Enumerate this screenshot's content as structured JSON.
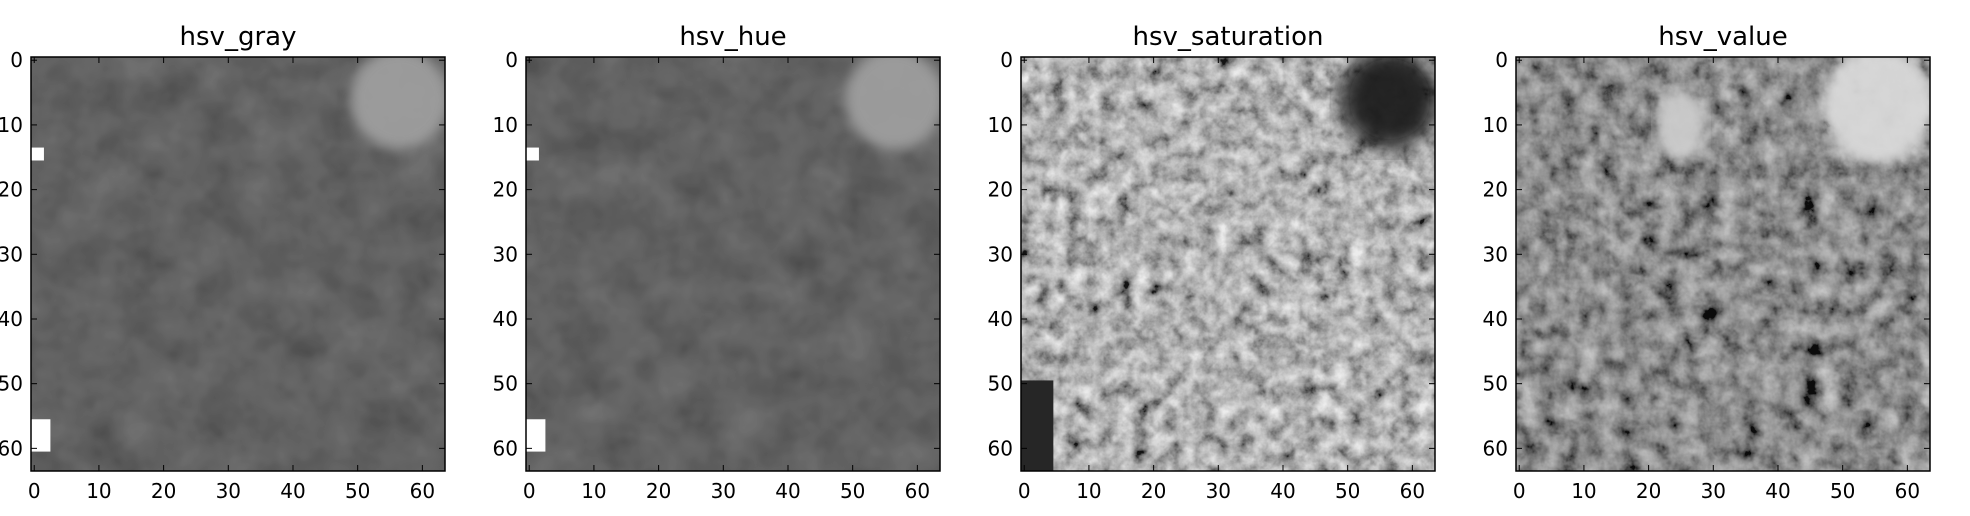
{
  "chart_data": [
    {
      "type": "heatmap",
      "title": "hsv_gray",
      "colormap": "gray",
      "xlim": [
        -0.5,
        63.5
      ],
      "ylim": [
        63.5,
        -0.5
      ],
      "xticks": [
        0,
        10,
        20,
        30,
        40,
        50,
        60
      ],
      "yticks": [
        0,
        10,
        20,
        30,
        40,
        50,
        60
      ],
      "base_level": 0.18,
      "features": [
        {
          "desc": "bright patch top-right",
          "x": [
            50,
            63
          ],
          "y": [
            0,
            12
          ],
          "level": 0.62
        },
        {
          "desc": "white speck left",
          "x": [
            0,
            1
          ],
          "y": [
            14,
            15
          ],
          "level": 1.0
        },
        {
          "desc": "white bracket bottom-left",
          "x": [
            0,
            2
          ],
          "y": [
            56,
            60
          ],
          "level": 1.0
        }
      ]
    },
    {
      "type": "heatmap",
      "title": "hsv_hue",
      "colormap": "gray",
      "xlim": [
        -0.5,
        63.5
      ],
      "ylim": [
        63.5,
        -0.5
      ],
      "xticks": [
        0,
        10,
        20,
        30,
        40,
        50,
        60
      ],
      "yticks": [
        0,
        10,
        20,
        30,
        40,
        50,
        60
      ],
      "base_level": 0.18,
      "features": [
        {
          "desc": "bright patch top-right",
          "x": [
            50,
            63
          ],
          "y": [
            0,
            12
          ],
          "level": 0.62
        },
        {
          "desc": "white speck left",
          "x": [
            0,
            1
          ],
          "y": [
            14,
            15
          ],
          "level": 1.0
        },
        {
          "desc": "white bracket bottom-left",
          "x": [
            0,
            2
          ],
          "y": [
            56,
            60
          ],
          "level": 1.0
        }
      ]
    },
    {
      "type": "heatmap",
      "title": "hsv_saturation",
      "colormap": "gray",
      "xlim": [
        -0.5,
        63.5
      ],
      "ylim": [
        63.5,
        -0.5
      ],
      "xticks": [
        0,
        10,
        20,
        30,
        40,
        50,
        60
      ],
      "yticks": [
        0,
        10,
        20,
        30,
        40,
        50,
        60
      ],
      "base_level": 0.5,
      "features": [
        {
          "desc": "dark region top-right",
          "x": [
            50,
            63
          ],
          "y": [
            0,
            12
          ],
          "level": 0.1
        },
        {
          "desc": "dark corner bottom-left",
          "x": [
            0,
            4
          ],
          "y": [
            50,
            63
          ],
          "level": 0.15
        }
      ]
    },
    {
      "type": "heatmap",
      "title": "hsv_value",
      "colormap": "gray",
      "xlim": [
        -0.5,
        63.5
      ],
      "ylim": [
        63.5,
        -0.5
      ],
      "xticks": [
        0,
        10,
        20,
        30,
        40,
        50,
        60
      ],
      "yticks": [
        0,
        10,
        20,
        30,
        40,
        50,
        60
      ],
      "base_level": 0.3,
      "features": [
        {
          "desc": "bright blob top-right",
          "x": [
            48,
            63
          ],
          "y": [
            0,
            14
          ],
          "level": 0.85
        },
        {
          "desc": "bright streak top-middle",
          "x": [
            22,
            28
          ],
          "y": [
            6,
            14
          ],
          "level": 0.8
        }
      ]
    }
  ]
}
